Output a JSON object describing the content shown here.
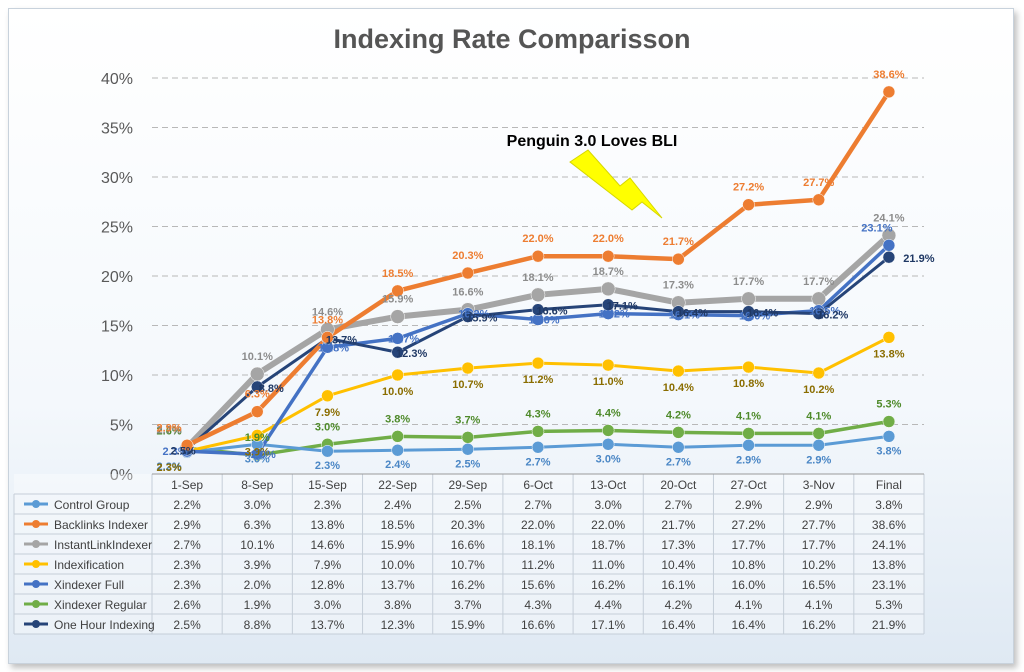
{
  "chart_data": {
    "type": "line",
    "title": "Indexing Rate Comparisson",
    "xlabel": "",
    "ylabel": "",
    "ylim": [
      0,
      40
    ],
    "y_ticks": [
      "0%",
      "5%",
      "10%",
      "15%",
      "20%",
      "25%",
      "30%",
      "35%",
      "40%"
    ],
    "grid": true,
    "legend": "table-below",
    "annotation": "Penguin 3.0 Loves BLI",
    "annotation_color": "#ffff00",
    "categories": [
      "1-Sep",
      "8-Sep",
      "15-Sep",
      "22-Sep",
      "29-Sep",
      "6-Oct",
      "13-Oct",
      "20-Oct",
      "27-Oct",
      "3-Nov",
      "Final"
    ],
    "series": [
      {
        "name": "Control Group",
        "color": "#5b9bd5",
        "label_color": "#4a86c5",
        "values": [
          2.2,
          3.0,
          2.3,
          2.4,
          2.5,
          2.7,
          3.0,
          2.7,
          2.9,
          2.9,
          3.8
        ],
        "cells": [
          "2.2%",
          "3.0%",
          "2.3%",
          "2.4%",
          "2.5%",
          "2.7%",
          "3.0%",
          "2.7%",
          "2.9%",
          "2.9%",
          "3.8%"
        ]
      },
      {
        "name": "Backlinks Indexer",
        "color": "#ed7d31",
        "label_color": "#ed7d31",
        "values": [
          2.9,
          6.3,
          13.8,
          18.5,
          20.3,
          22.0,
          22.0,
          21.7,
          27.2,
          27.7,
          38.6
        ],
        "cells": [
          "2.9%",
          "6.3%",
          "13.8%",
          "18.5%",
          "20.3%",
          "22.0%",
          "22.0%",
          "21.7%",
          "27.2%",
          "27.7%",
          "38.6%"
        ]
      },
      {
        "name": "InstantLinkIndexer",
        "color": "#a5a5a5",
        "label_color": "#8c8c8c",
        "values": [
          2.7,
          10.1,
          14.6,
          15.9,
          16.6,
          18.1,
          18.7,
          17.3,
          17.7,
          17.7,
          24.1
        ],
        "cells": [
          "2.7%",
          "10.1%",
          "14.6%",
          "15.9%",
          "16.6%",
          "18.1%",
          "18.7%",
          "17.3%",
          "17.7%",
          "17.7%",
          "24.1%"
        ]
      },
      {
        "name": "Indexification",
        "color": "#ffc000",
        "label_color": "#8a6d00",
        "values": [
          2.3,
          3.9,
          7.9,
          10.0,
          10.7,
          11.2,
          11.0,
          10.4,
          10.8,
          10.2,
          13.8
        ],
        "cells": [
          "2.3%",
          "3.9%",
          "7.9%",
          "10.0%",
          "10.7%",
          "11.2%",
          "11.0%",
          "10.4%",
          "10.8%",
          "10.2%",
          "13.8%"
        ]
      },
      {
        "name": "Xindexer Full",
        "color": "#4472c4",
        "label_color": "#4472c4",
        "values": [
          2.3,
          2.0,
          12.8,
          13.7,
          16.2,
          15.6,
          16.2,
          16.1,
          16.0,
          16.5,
          23.1
        ],
        "cells": [
          "2.3%",
          "2.0%",
          "12.8%",
          "13.7%",
          "16.2%",
          "15.6%",
          "16.2%",
          "16.1%",
          "16.0%",
          "16.5%",
          "23.1%"
        ]
      },
      {
        "name": "Xindexer Regular",
        "color": "#70ad47",
        "label_color": "#4e8a2a",
        "values": [
          2.6,
          1.9,
          3.0,
          3.8,
          3.7,
          4.3,
          4.4,
          4.2,
          4.1,
          4.1,
          5.3
        ],
        "cells": [
          "2.6%",
          "1.9%",
          "3.0%",
          "3.8%",
          "3.7%",
          "4.3%",
          "4.4%",
          "4.2%",
          "4.1%",
          "4.1%",
          "5.3%"
        ]
      },
      {
        "name": "One Hour Indexing",
        "color": "#264478",
        "label_color": "#1f3864",
        "values": [
          2.5,
          8.8,
          13.7,
          12.3,
          15.9,
          16.6,
          17.1,
          16.4,
          16.4,
          16.2,
          21.9
        ],
        "cells": [
          "2.5%",
          "8.8%",
          "13.7%",
          "12.3%",
          "15.9%",
          "16.6%",
          "17.1%",
          "16.4%",
          "16.4%",
          "16.2%",
          "21.9%"
        ]
      }
    ]
  }
}
